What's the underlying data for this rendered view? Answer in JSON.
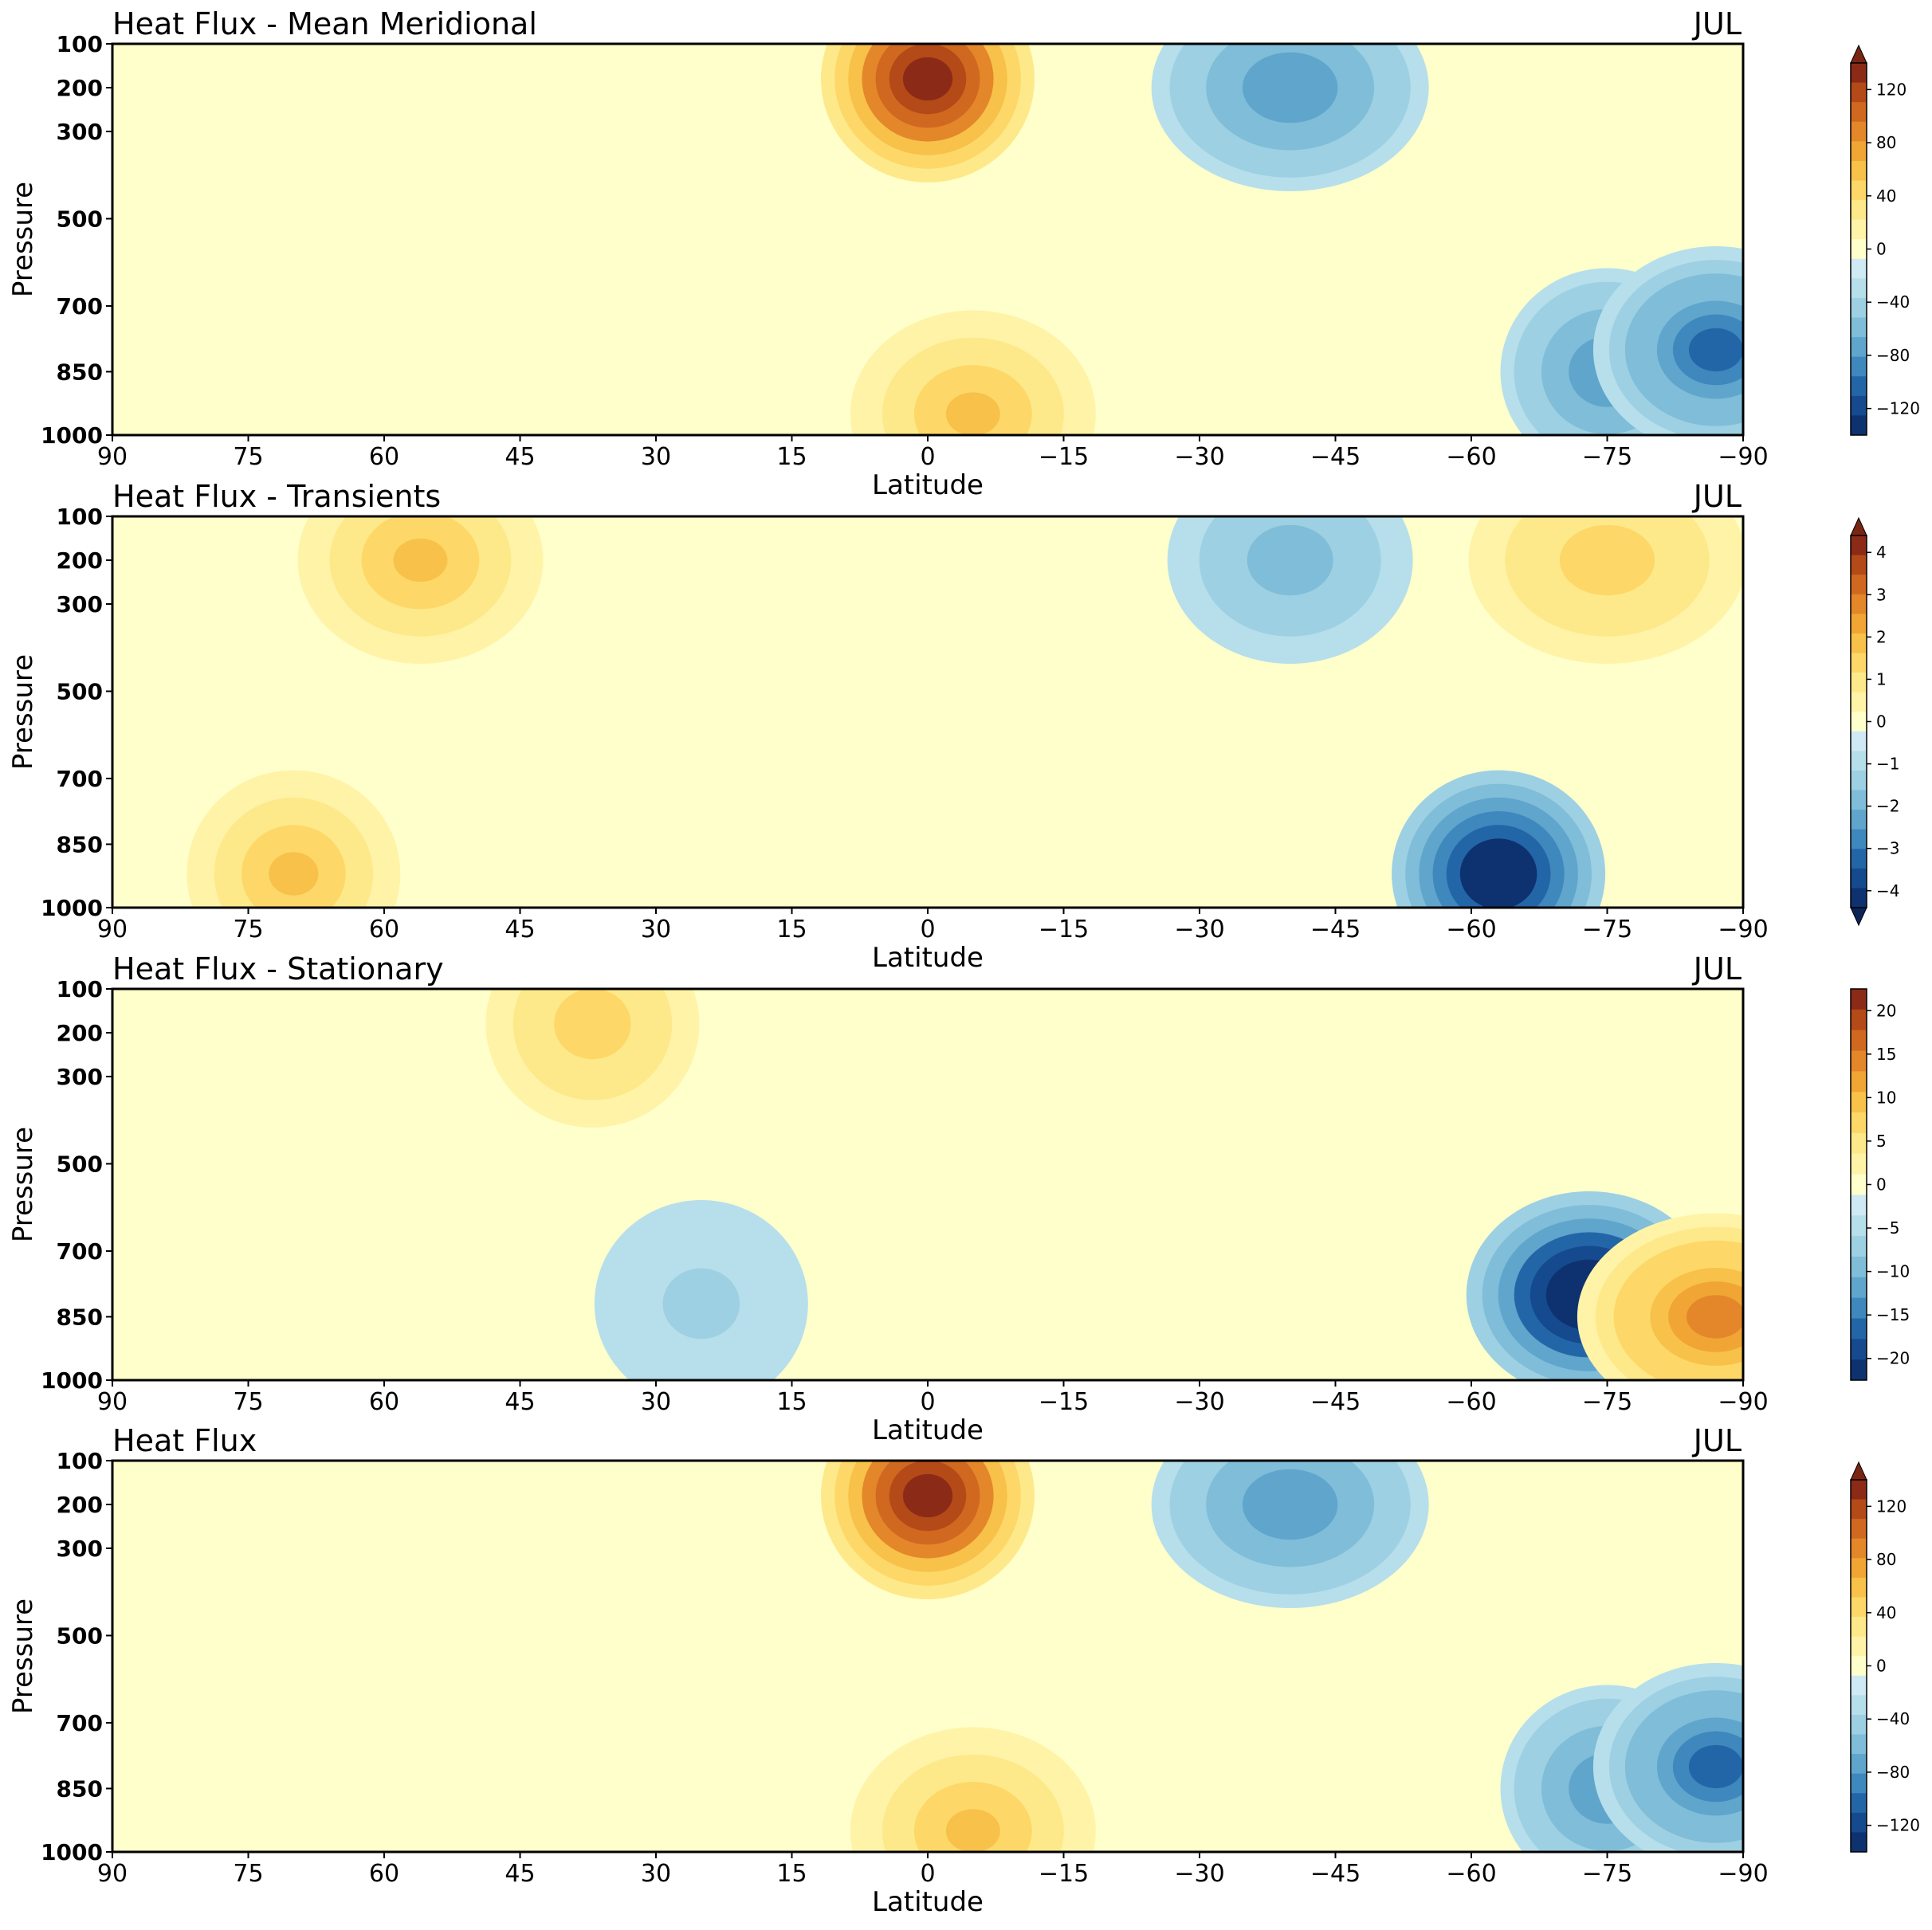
{
  "chart_data": [
    {
      "type": "contour",
      "title": "Heat Flux - Mean Meridional",
      "month": "JUL",
      "xlabel": "Latitude",
      "ylabel": "Pressure",
      "xticks": [
        "90",
        "75",
        "60",
        "45",
        "30",
        "15",
        "0",
        "−15",
        "−30",
        "−45",
        "−60",
        "−75",
        "−90"
      ],
      "yticks": [
        "100",
        "200",
        "300",
        "500",
        "700",
        "850",
        "1000"
      ],
      "xlim": [
        90,
        -90
      ],
      "ylim": [
        1000,
        100
      ],
      "colorbar": {
        "ticks": [
          "120",
          "80",
          "40",
          "0",
          "−40",
          "−80",
          "−120"
        ],
        "range": [
          -140,
          140
        ],
        "extend": "both"
      },
      "features": [
        {
          "lat": 0,
          "p": 180,
          "value": 140
        },
        {
          "lat": -5,
          "p": 950,
          "value": 50
        },
        {
          "lat": -40,
          "p": 200,
          "value": -60
        },
        {
          "lat": -75,
          "p": 850,
          "value": -60
        },
        {
          "lat": -87,
          "p": 800,
          "value": -80
        }
      ]
    },
    {
      "type": "contour",
      "title": "Heat Flux -  Transients",
      "month": "JUL",
      "xlabel": "Latitude",
      "ylabel": "Pressure",
      "xticks": [
        "90",
        "75",
        "60",
        "45",
        "30",
        "15",
        "0",
        "−15",
        "−30",
        "−45",
        "−60",
        "−75",
        "−90"
      ],
      "yticks": [
        "100",
        "200",
        "300",
        "500",
        "700",
        "850",
        "1000"
      ],
      "xlim": [
        90,
        -90
      ],
      "ylim": [
        1000,
        100
      ],
      "colorbar": {
        "ticks": [
          "4",
          "3",
          "2",
          "1",
          "0",
          "−1",
          "−2",
          "−3",
          "−4"
        ],
        "range": [
          -4.4,
          4.4
        ],
        "extend": "both"
      },
      "features": [
        {
          "lat": 70,
          "p": 920,
          "value": 1.5
        },
        {
          "lat": 56,
          "p": 200,
          "value": 1.5
        },
        {
          "lat": -75,
          "p": 200,
          "value": 1.2
        },
        {
          "lat": -63,
          "p": 920,
          "value": -4
        },
        {
          "lat": -40,
          "p": 200,
          "value": -1.2
        }
      ]
    },
    {
      "type": "contour",
      "title": "Heat Flux - Stationary",
      "month": "JUL",
      "xlabel": "Latitude",
      "ylabel": "Pressure",
      "xticks": [
        "90",
        "75",
        "60",
        "45",
        "30",
        "15",
        "0",
        "−15",
        "−30",
        "−45",
        "−60",
        "−75",
        "−90"
      ],
      "yticks": [
        "100",
        "200",
        "300",
        "500",
        "700",
        "850",
        "1000"
      ],
      "xlim": [
        90,
        -90
      ],
      "ylim": [
        1000,
        100
      ],
      "colorbar": {
        "ticks": [
          "20",
          "15",
          "10",
          "5",
          "0",
          "−5",
          "−10",
          "−15",
          "−20"
        ],
        "range": [
          -22.5,
          22.5
        ],
        "extend": "neither"
      },
      "features": [
        {
          "lat": 37,
          "p": 180,
          "value": 6
        },
        {
          "lat": -73,
          "p": 800,
          "value": -22
        },
        {
          "lat": -87,
          "p": 850,
          "value": 13
        },
        {
          "lat": 25,
          "p": 820,
          "value": -3
        }
      ]
    },
    {
      "type": "contour",
      "title": "Heat Flux",
      "month": "JUL",
      "xlabel": "Latitude",
      "ylabel": "Pressure",
      "xticks": [
        "90",
        "75",
        "60",
        "45",
        "30",
        "15",
        "0",
        "−15",
        "−30",
        "−45",
        "−60",
        "−75",
        "−90"
      ],
      "yticks": [
        "100",
        "200",
        "300",
        "500",
        "700",
        "850",
        "1000"
      ],
      "xlim": [
        90,
        -90
      ],
      "ylim": [
        1000,
        100
      ],
      "colorbar": {
        "ticks": [
          "120",
          "80",
          "40",
          "0",
          "−40",
          "−80",
          "−120"
        ],
        "range": [
          -140,
          140
        ],
        "extend": "both"
      },
      "features": [
        {
          "lat": 0,
          "p": 180,
          "value": 140
        },
        {
          "lat": -5,
          "p": 950,
          "value": 50
        },
        {
          "lat": -40,
          "p": 200,
          "value": -60
        },
        {
          "lat": -75,
          "p": 850,
          "value": -60
        },
        {
          "lat": -87,
          "p": 800,
          "value": -80
        }
      ]
    }
  ],
  "colors": {
    "warm": [
      "#ffffcc",
      "#fff3a8",
      "#fee98a",
      "#fdd868",
      "#f7c14a",
      "#f0a534",
      "#e4862a",
      "#d06820",
      "#b44a18",
      "#8b2b17"
    ],
    "cool": [
      "#cfeaf4",
      "#b6dfeb",
      "#9dd0e2",
      "#7fbdd8",
      "#5fa5cc",
      "#3f88bd",
      "#2366a8",
      "#164a8f",
      "#0e3270"
    ],
    "ext_warm": "#7a2512",
    "ext_cool": "#0b2558"
  }
}
